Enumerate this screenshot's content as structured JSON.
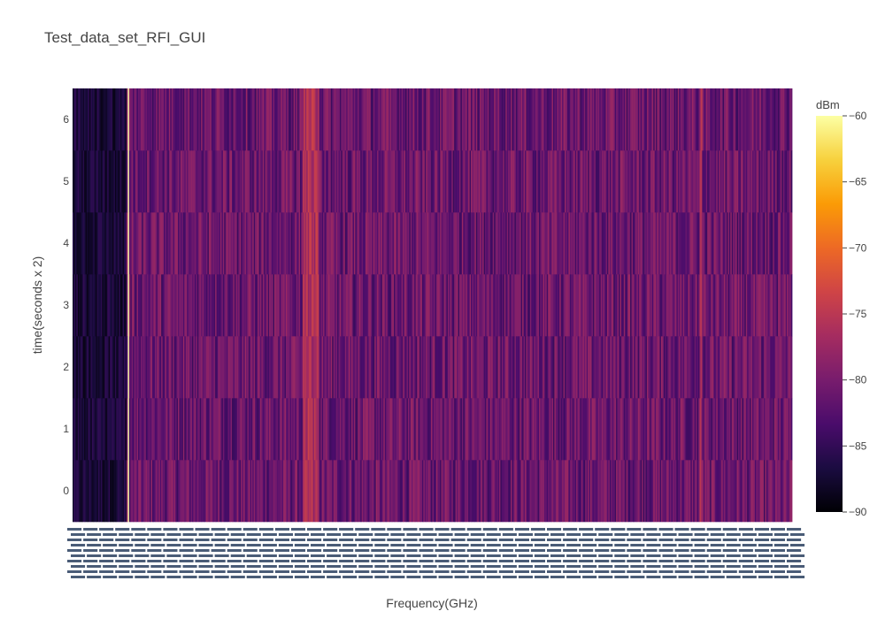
{
  "title": "Test_data_set_RFI_GUI",
  "chart_data": {
    "type": "heatmap",
    "title": "Test_data_set_RFI_GUI",
    "xlabel": "Frequency(GHz)",
    "ylabel": "time(seconds x 2)",
    "y_categories": [
      0,
      1,
      2,
      3,
      4,
      5,
      6
    ],
    "colorbar": {
      "title": "dBm",
      "range": [
        -90,
        -60
      ],
      "ticks": [
        -90,
        -85,
        -80,
        -75,
        -70,
        -65,
        -60
      ],
      "colorscale": "inferno",
      "colors": [
        "#000004",
        "#1b0c41",
        "#4a0c6b",
        "#781c6d",
        "#a52c60",
        "#cf4446",
        "#ed6925",
        "#fb9b06",
        "#f7d13d",
        "#fcffa4"
      ]
    },
    "columns": 560,
    "features": [
      {
        "x_fraction": [
          0.0,
          0.075
        ],
        "value_dbm": -87,
        "description": "dark low band"
      },
      {
        "x_fraction": 0.077,
        "value_dbm": -60,
        "description": "bright vertical line"
      },
      {
        "x_fraction": 0.33,
        "value_dbm": -76,
        "description": "moderate band"
      },
      {
        "x_fraction": 0.872,
        "value_dbm": -76,
        "description": "spike line"
      }
    ],
    "typical_value_dbm": -81
  }
}
